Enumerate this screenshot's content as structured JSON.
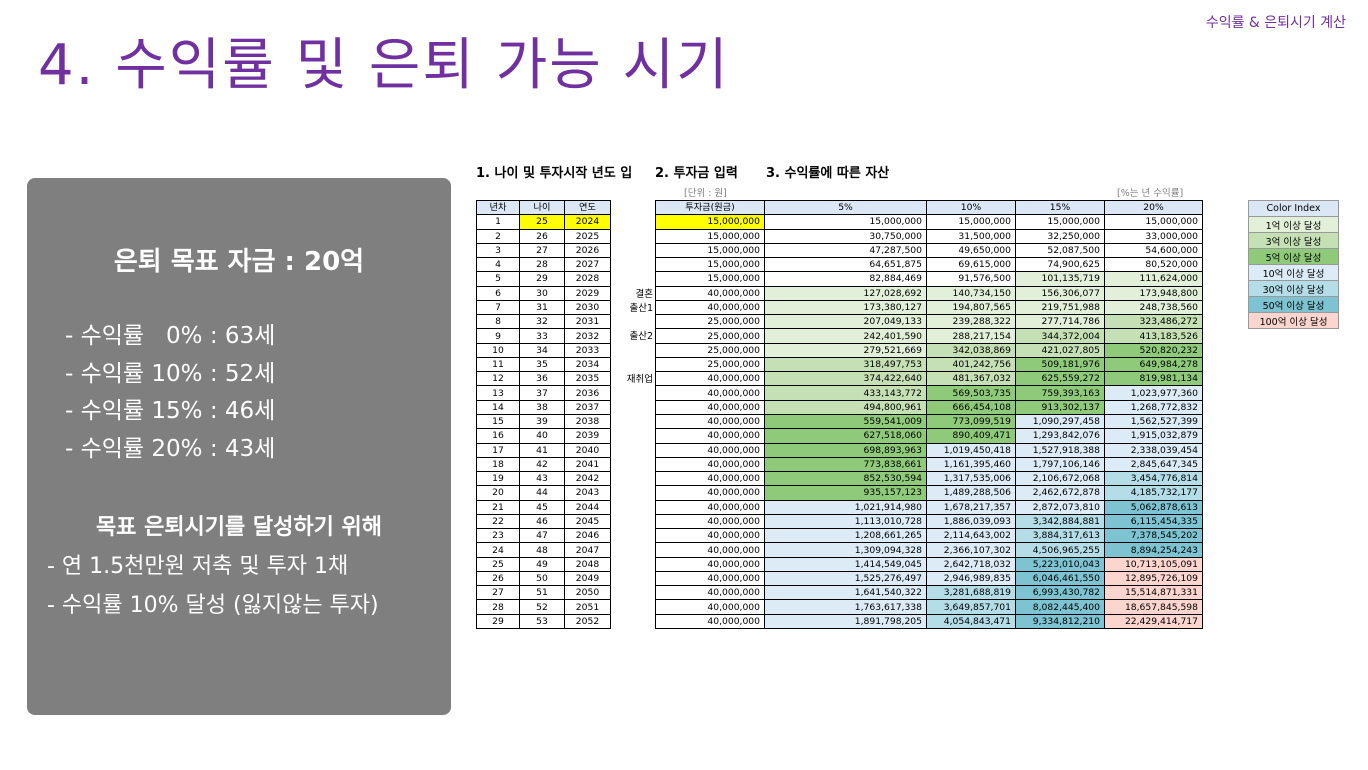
{
  "corner_label": "수익률 & 은퇴시기 계산",
  "page_title": "4. 수익률 및 은퇴 가능 시기",
  "panel": {
    "goal": "은퇴 목표 자금 : 20억",
    "rates": [
      "- 수익률   0% : 63세",
      "- 수익률 10% : 52세",
      "- 수익률 15% : 46세",
      "- 수익률 20% : 43세"
    ],
    "how_title": "목표 은퇴시기를 달성하기 위해",
    "bullets": [
      "- 연 1.5천만원 저축 및 투자 1채",
      "- 수익률 10% 달성 (잃지않는 투자)"
    ]
  },
  "sections": {
    "s1": "1. 나이 및 투자시작 년도 입",
    "s2": "2. 투자금 입력",
    "s3": "3. 수익률에 따른 자산"
  },
  "units": {
    "won": "[단위 : 원]",
    "pct": "[%는 년 수익률]"
  },
  "table1": {
    "headers": [
      "년차",
      "나이",
      "연도"
    ],
    "rows": [
      [
        "1",
        "25",
        "2024"
      ],
      [
        "2",
        "26",
        "2025"
      ],
      [
        "3",
        "27",
        "2026"
      ],
      [
        "4",
        "28",
        "2027"
      ],
      [
        "5",
        "29",
        "2028"
      ],
      [
        "6",
        "30",
        "2029"
      ],
      [
        "7",
        "31",
        "2030"
      ],
      [
        "8",
        "32",
        "2031"
      ],
      [
        "9",
        "33",
        "2032"
      ],
      [
        "10",
        "34",
        "2033"
      ],
      [
        "11",
        "35",
        "2034"
      ],
      [
        "12",
        "36",
        "2035"
      ],
      [
        "13",
        "37",
        "2036"
      ],
      [
        "14",
        "38",
        "2037"
      ],
      [
        "15",
        "39",
        "2038"
      ],
      [
        "16",
        "40",
        "2039"
      ],
      [
        "17",
        "41",
        "2040"
      ],
      [
        "18",
        "42",
        "2041"
      ],
      [
        "19",
        "43",
        "2042"
      ],
      [
        "20",
        "44",
        "2043"
      ],
      [
        "21",
        "45",
        "2044"
      ],
      [
        "22",
        "46",
        "2045"
      ],
      [
        "23",
        "47",
        "2046"
      ],
      [
        "24",
        "48",
        "2047"
      ],
      [
        "25",
        "49",
        "2048"
      ],
      [
        "26",
        "50",
        "2049"
      ],
      [
        "27",
        "51",
        "2050"
      ],
      [
        "28",
        "52",
        "2051"
      ],
      [
        "29",
        "53",
        "2052"
      ]
    ]
  },
  "events": [
    {
      "row": 5,
      "text": "결혼"
    },
    {
      "row": 6,
      "text": "출산1"
    },
    {
      "row": 8,
      "text": "출산2"
    },
    {
      "row": 11,
      "text": "재취업"
    }
  ],
  "table2": {
    "headers": [
      "투자금(원금)",
      "5%",
      "10%",
      "15%",
      "20%"
    ],
    "rows": [
      [
        "15,000,000",
        "15,000,000",
        "15,000,000",
        "15,000,000",
        "15,000,000"
      ],
      [
        "15,000,000",
        "30,750,000",
        "31,500,000",
        "32,250,000",
        "33,000,000"
      ],
      [
        "15,000,000",
        "47,287,500",
        "49,650,000",
        "52,087,500",
        "54,600,000"
      ],
      [
        "15,000,000",
        "64,651,875",
        "69,615,000",
        "74,900,625",
        "80,520,000"
      ],
      [
        "15,000,000",
        "82,884,469",
        "91,576,500",
        "101,135,719",
        "111,624,000"
      ],
      [
        "40,000,000",
        "127,028,692",
        "140,734,150",
        "156,306,077",
        "173,948,800"
      ],
      [
        "40,000,000",
        "173,380,127",
        "194,807,565",
        "219,751,988",
        "248,738,560"
      ],
      [
        "25,000,000",
        "207,049,133",
        "239,288,322",
        "277,714,786",
        "323,486,272"
      ],
      [
        "25,000,000",
        "242,401,590",
        "288,217,154",
        "344,372,004",
        "413,183,526"
      ],
      [
        "25,000,000",
        "279,521,669",
        "342,038,869",
        "421,027,805",
        "520,820,232"
      ],
      [
        "25,000,000",
        "318,497,753",
        "401,242,756",
        "509,181,976",
        "649,984,278"
      ],
      [
        "40,000,000",
        "374,422,640",
        "481,367,032",
        "625,559,272",
        "819,981,134"
      ],
      [
        "40,000,000",
        "433,143,772",
        "569,503,735",
        "759,393,163",
        "1,023,977,360"
      ],
      [
        "40,000,000",
        "494,800,961",
        "666,454,108",
        "913,302,137",
        "1,268,772,832"
      ],
      [
        "40,000,000",
        "559,541,009",
        "773,099,519",
        "1,090,297,458",
        "1,562,527,399"
      ],
      [
        "40,000,000",
        "627,518,060",
        "890,409,471",
        "1,293,842,076",
        "1,915,032,879"
      ],
      [
        "40,000,000",
        "698,893,963",
        "1,019,450,418",
        "1,527,918,388",
        "2,338,039,454"
      ],
      [
        "40,000,000",
        "773,838,661",
        "1,161,395,460",
        "1,797,106,146",
        "2,845,647,345"
      ],
      [
        "40,000,000",
        "852,530,594",
        "1,317,535,006",
        "2,106,672,068",
        "3,454,776,814"
      ],
      [
        "40,000,000",
        "935,157,123",
        "1,489,288,506",
        "2,462,672,878",
        "4,185,732,177"
      ],
      [
        "40,000,000",
        "1,021,914,980",
        "1,678,217,357",
        "2,872,073,810",
        "5,062,878,613"
      ],
      [
        "40,000,000",
        "1,113,010,728",
        "1,886,039,093",
        "3,342,884,881",
        "6,115,454,335"
      ],
      [
        "40,000,000",
        "1,208,661,265",
        "2,114,643,002",
        "3,884,317,613",
        "7,378,545,202"
      ],
      [
        "40,000,000",
        "1,309,094,328",
        "2,366,107,302",
        "4,506,965,255",
        "8,894,254,243"
      ],
      [
        "40,000,000",
        "1,414,549,045",
        "2,642,718,032",
        "5,223,010,043",
        "10,713,105,091"
      ],
      [
        "40,000,000",
        "1,525,276,497",
        "2,946,989,835",
        "6,046,461,550",
        "12,895,726,109"
      ],
      [
        "40,000,000",
        "1,641,540,322",
        "3,281,688,819",
        "6,993,430,782",
        "15,514,871,331"
      ],
      [
        "40,000,000",
        "1,763,617,338",
        "3,649,857,701",
        "8,082,445,400",
        "18,657,845,598"
      ],
      [
        "40,000,000",
        "1,891,798,205",
        "4,054,843,471",
        "9,334,812,210",
        "22,429,414,717"
      ]
    ]
  },
  "color_index": {
    "title": "Color Index",
    "items": [
      {
        "label": "1억 이상 달성",
        "color": "#e2f0d9"
      },
      {
        "label": "3억 이상 달성",
        "color": "#c5e0b4"
      },
      {
        "label": "5억 이상 달성",
        "color": "#8fca7a"
      },
      {
        "label": "10억 이상 달성",
        "color": "#ddebf7"
      },
      {
        "label": "30억 이상 달성",
        "color": "#b4dde8"
      },
      {
        "label": "50억 이상 달성",
        "color": "#7dc3d2"
      },
      {
        "label": "100억 이상 달성",
        "color": "#fcd5cf"
      }
    ]
  }
}
